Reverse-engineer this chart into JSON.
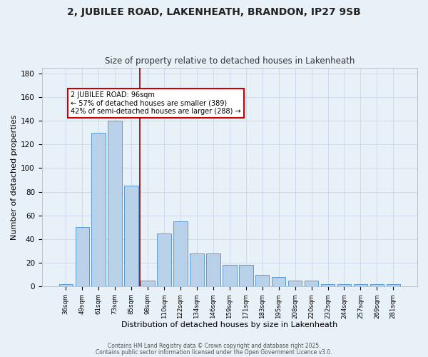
{
  "title": "2, JUBILEE ROAD, LAKENHEATH, BRANDON, IP27 9SB",
  "subtitle": "Size of property relative to detached houses in Lakenheath",
  "xlabel": "Distribution of detached houses by size in Lakenheath",
  "ylabel": "Number of detached properties",
  "categories": [
    "36sqm",
    "49sqm",
    "61sqm",
    "73sqm",
    "85sqm",
    "98sqm",
    "110sqm",
    "122sqm",
    "134sqm",
    "146sqm",
    "159sqm",
    "171sqm",
    "183sqm",
    "195sqm",
    "208sqm",
    "220sqm",
    "232sqm",
    "244sqm",
    "257sqm",
    "269sqm",
    "281sqm"
  ],
  "values": [
    2,
    50,
    130,
    140,
    85,
    5,
    45,
    55,
    28,
    28,
    18,
    18,
    10,
    8,
    5,
    5,
    2,
    2,
    2,
    2,
    2
  ],
  "bar_color": "#b8d0e8",
  "bar_edge_color": "#5b9bd5",
  "vline_x": 4.5,
  "vline_color": "#8b0000",
  "annotation_line1": "2 JUBILEE ROAD: 96sqm",
  "annotation_line2": "← 57% of detached houses are smaller (389)",
  "annotation_line3": "42% of semi-detached houses are larger (288) →",
  "annotation_box_color": "#ffffff",
  "annotation_box_edge": "#cc0000",
  "ylim": [
    0,
    185
  ],
  "yticks": [
    0,
    20,
    40,
    60,
    80,
    100,
    120,
    140,
    160,
    180
  ],
  "footer1": "Contains HM Land Registry data © Crown copyright and database right 2025.",
  "footer2": "Contains public sector information licensed under the Open Government Licence v3.0.",
  "bg_color": "#e8f0f8",
  "plot_bg_color": "#e8f0f8",
  "title_fontsize": 10,
  "subtitle_fontsize": 8.5,
  "xlabel_fontsize": 8,
  "ylabel_fontsize": 8
}
